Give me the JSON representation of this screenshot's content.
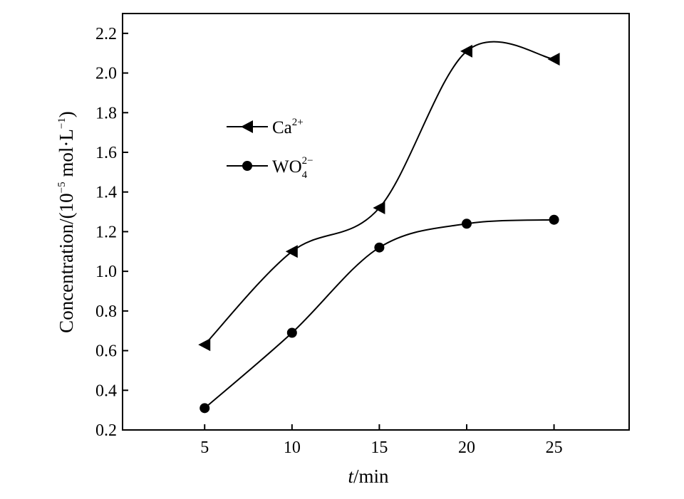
{
  "chart_data": {
    "type": "line",
    "title": "",
    "x": [
      5,
      10,
      15,
      20,
      25
    ],
    "xlim": [
      0.3,
      29.3
    ],
    "ylim": [
      0.2,
      2.3
    ],
    "xticks": [
      5,
      10,
      15,
      20,
      25
    ],
    "yticks": [
      0.2,
      0.4,
      0.6,
      0.8,
      1.0,
      1.2,
      1.4,
      1.6,
      1.8,
      2.0,
      2.2
    ],
    "xlabel": {
      "italic": "t",
      "rest": "/min"
    },
    "ylabel": {
      "prefix": "Concentration/(10",
      "exp": "−5",
      "suffix": " mol·L",
      "exp2": "−1",
      "close": ")"
    },
    "grid": false,
    "legend_position": "upper-left",
    "smooth": true,
    "series": [
      {
        "name": "Ca",
        "name_sup": "2+",
        "marker": "triangle-left",
        "color": "#000000",
        "values": [
          0.63,
          1.1,
          1.32,
          2.11,
          2.07
        ]
      },
      {
        "name": "WO",
        "name_sub": "4",
        "name_sup": "2−",
        "marker": "circle",
        "color": "#000000",
        "values": [
          0.31,
          0.69,
          1.12,
          1.24,
          1.26
        ]
      }
    ]
  }
}
